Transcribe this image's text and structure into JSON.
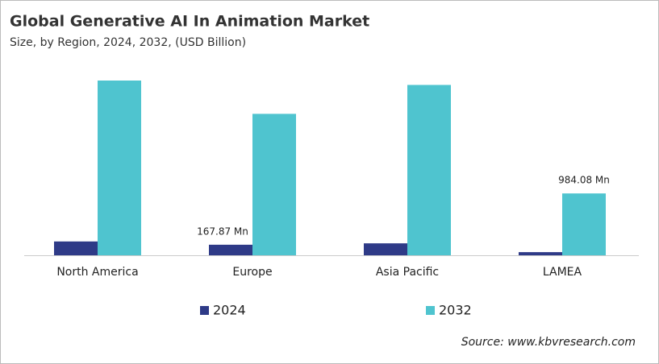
{
  "chart_data": {
    "type": "bar",
    "title": "Global Generative AI In Animation Market",
    "subtitle": "Size, by Region, 2024, 2032, (USD Billion)",
    "categories": [
      "North America",
      "Europe",
      "Asia Pacific",
      "LAMEA"
    ],
    "series": [
      {
        "name": "2024",
        "color": "#2e3a87",
        "values": [
          0.22,
          0.16787,
          0.19,
          0.05
        ],
        "value_labels": [
          null,
          "167.87 Mn",
          null,
          null
        ]
      },
      {
        "name": "2032",
        "color": "#4fc4cf",
        "values": [
          2.78,
          2.25,
          2.71,
          0.98408
        ],
        "value_labels": [
          null,
          null,
          null,
          "984.08 Mn"
        ]
      }
    ],
    "source": "Source: www.kbvresearch.com"
  }
}
